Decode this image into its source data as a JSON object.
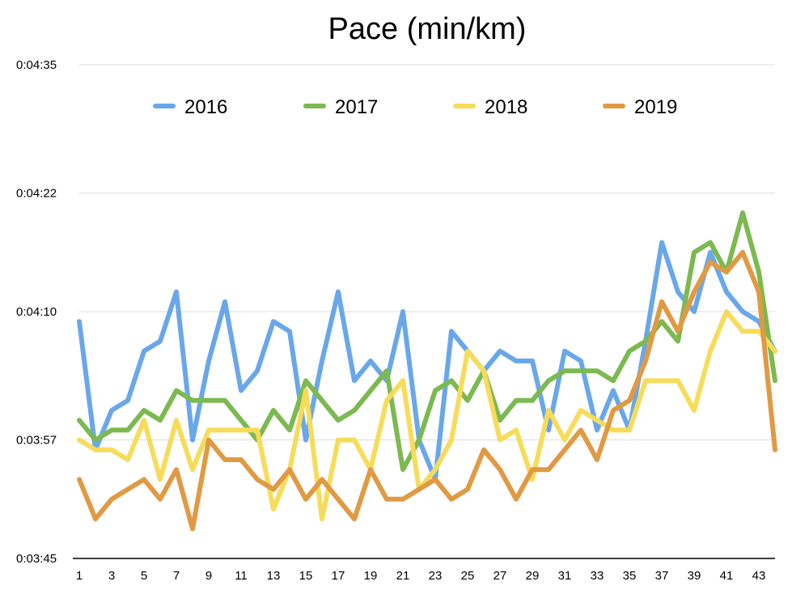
{
  "chart_data": {
    "type": "line",
    "title": "Pace (min/km)",
    "xlabel": "",
    "ylabel": "",
    "x": [
      1,
      2,
      3,
      4,
      5,
      6,
      7,
      8,
      9,
      10,
      11,
      12,
      13,
      14,
      15,
      16,
      17,
      18,
      19,
      20,
      21,
      22,
      23,
      24,
      25,
      26,
      27,
      28,
      29,
      30,
      31,
      32,
      33,
      34,
      35,
      36,
      37,
      38,
      39,
      40,
      41,
      42,
      43,
      44
    ],
    "x_tick_labels": [
      "1",
      "3",
      "5",
      "7",
      "9",
      "11",
      "13",
      "15",
      "17",
      "19",
      "21",
      "23",
      "25",
      "27",
      "29",
      "31",
      "33",
      "35",
      "37",
      "39",
      "41",
      "43"
    ],
    "y_ticks": [
      "0:03:45",
      "0:03:57",
      "0:04:10",
      "0:04:22",
      "0:04:35"
    ],
    "ylim_seconds": [
      225,
      275
    ],
    "grid": true,
    "legend_position": "top",
    "series": [
      {
        "name": "2016",
        "color": "#6aa7ea",
        "values": [
          249,
          236,
          240,
          241,
          246,
          247,
          252,
          237,
          245,
          251,
          242,
          244,
          249,
          248,
          237,
          245,
          252,
          243,
          245,
          243,
          250,
          237,
          233,
          248,
          246,
          244,
          246,
          245,
          245,
          238,
          246,
          245,
          238,
          242,
          238,
          247,
          257,
          252,
          250,
          256,
          252,
          250,
          249,
          246
        ]
      },
      {
        "name": "2017",
        "color": "#7cb951",
        "values": [
          239,
          237,
          238,
          238,
          240,
          239,
          242,
          241,
          241,
          241,
          239,
          237,
          240,
          238,
          243,
          241,
          239,
          240,
          242,
          244,
          234,
          237,
          242,
          243,
          241,
          244,
          239,
          241,
          241,
          243,
          244,
          244,
          244,
          243,
          246,
          247,
          249,
          247,
          256,
          257,
          254,
          260,
          254,
          243
        ]
      },
      {
        "name": "2018",
        "color": "#f6dc5a",
        "values": [
          237,
          236,
          236,
          235,
          239,
          233,
          239,
          234,
          238,
          238,
          238,
          238,
          230,
          234,
          242,
          229,
          237,
          237,
          234,
          241,
          243,
          232,
          234,
          237,
          246,
          244,
          237,
          238,
          233,
          240,
          237,
          240,
          239,
          238,
          238,
          243,
          243,
          243,
          240,
          246,
          250,
          248,
          248,
          246
        ]
      },
      {
        "name": "2019",
        "color": "#e09a43",
        "values": [
          233,
          229,
          231,
          232,
          233,
          231,
          234,
          228,
          237,
          235,
          235,
          233,
          232,
          234,
          231,
          233,
          231,
          229,
          234,
          231,
          231,
          232,
          233,
          231,
          232,
          236,
          234,
          231,
          234,
          234,
          236,
          238,
          235,
          240,
          241,
          245,
          251,
          248,
          252,
          255,
          254,
          256,
          252,
          236
        ]
      }
    ]
  }
}
